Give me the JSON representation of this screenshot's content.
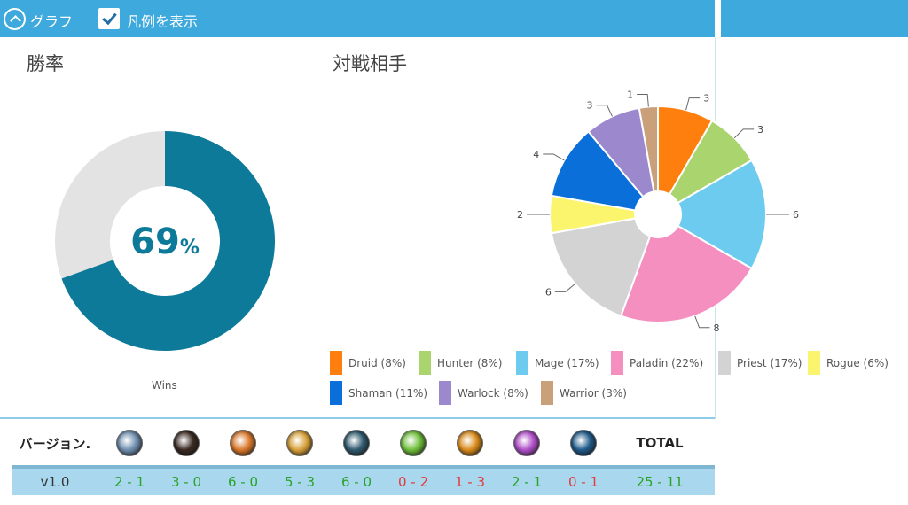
{
  "toolbar": {
    "graph_label": "グラフ",
    "legend_toggle_label": "凡例を表示",
    "legend_checked": true,
    "bar_color": "#3ea9dc"
  },
  "winrate": {
    "title": "勝率",
    "percent_number": "69",
    "percent_sign": "%",
    "caption": "Wins",
    "win_color": "#0d7a99",
    "loss_color": "#e3e3e3"
  },
  "opponents": {
    "title": "対戦相手"
  },
  "chart_data": [
    {
      "type": "pie",
      "title": "勝率",
      "categories": [
        "Wins",
        ""
      ],
      "values": [
        25,
        11
      ],
      "colors": [
        "#0d7a99",
        "#e3e3e3"
      ],
      "donut": true,
      "center_label": "69%"
    },
    {
      "type": "pie",
      "title": "対戦相手",
      "donut": true,
      "categories": [
        "Druid",
        "Hunter",
        "Mage",
        "Paladin",
        "Priest",
        "Rogue",
        "Shaman",
        "Warlock",
        "Warrior"
      ],
      "values": [
        3,
        3,
        6,
        8,
        6,
        2,
        4,
        3,
        1
      ],
      "colors": [
        "#ff7f0e",
        "#a9d46e",
        "#6ecbf0",
        "#f58fc0",
        "#d3d3d3",
        "#fbf56e",
        "#0a6fd9",
        "#9c88cc",
        "#c9a07a"
      ],
      "legend": [
        "Druid (8%)",
        "Hunter (8%)",
        "Mage (17%)",
        "Paladin (22%)",
        "Priest (17%)",
        "Rogue (6%)",
        "Shaman (11%)",
        "Warlock (8%)",
        "Warrior (3%)"
      ],
      "legend_position": "bottom"
    }
  ],
  "table": {
    "header_version": "バージョン.",
    "header_total": "TOTAL",
    "class_icons": [
      {
        "name": "druid-icon",
        "color": "#6f8fb0"
      },
      {
        "name": "hunter-icon",
        "color": "#3a2a22"
      },
      {
        "name": "mage-icon",
        "color": "#d9772a"
      },
      {
        "name": "paladin-icon",
        "color": "#d9a23a"
      },
      {
        "name": "priest-icon",
        "color": "#2f5a6e"
      },
      {
        "name": "rogue-icon",
        "color": "#6fbf3a"
      },
      {
        "name": "shaman-icon",
        "color": "#d98a1a"
      },
      {
        "name": "warlock-icon",
        "color": "#b04fc9"
      },
      {
        "name": "warrior-icon",
        "color": "#1f5a8a"
      }
    ],
    "row": {
      "version": "v1.0",
      "results": [
        "2 - 1",
        "3 - 0",
        "6 - 0",
        "5 - 3",
        "6 - 0",
        "0 - 2",
        "1 - 3",
        "2 - 1",
        "0 - 1"
      ],
      "total": "25 - 11"
    },
    "positive_color": "#27a327",
    "negative_color": "#e23a3a"
  }
}
